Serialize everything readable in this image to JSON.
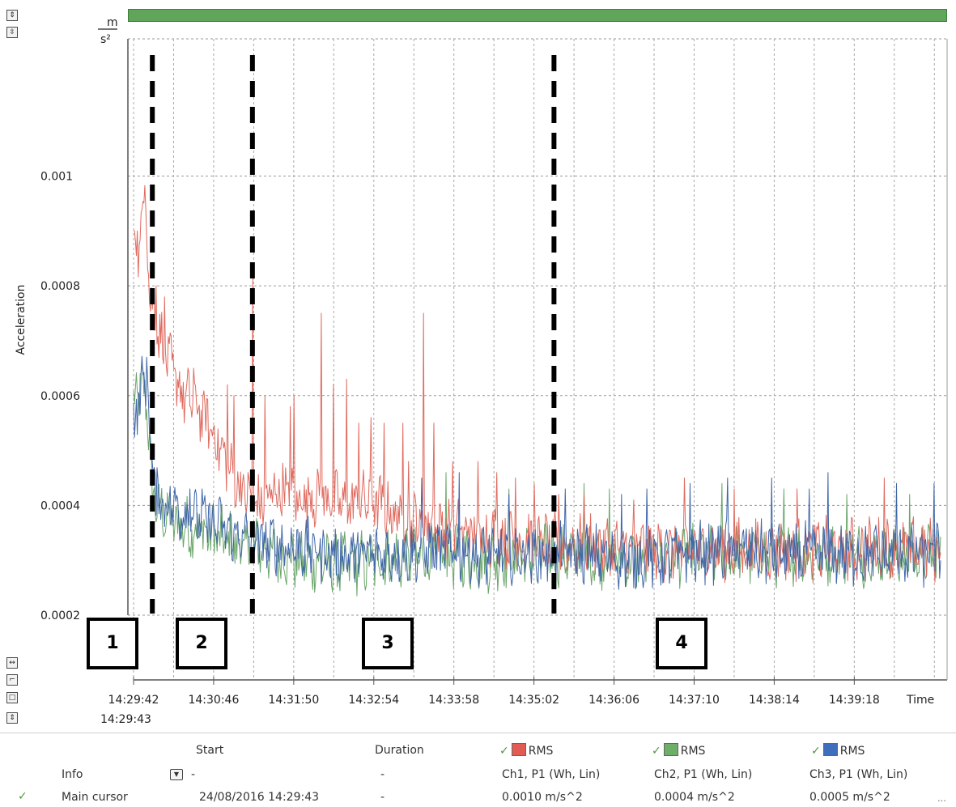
{
  "chart_data": {
    "type": "line",
    "y_unit_top": "m",
    "y_unit_bottom": "s²",
    "ylabel": "Acceleration",
    "xlabel": "Time",
    "y_ticks": [
      "0.001",
      "0.0008",
      "0.0006",
      "0.0004",
      "0.0002"
    ],
    "y_tick_values": [
      0.001,
      0.0008,
      0.0006,
      0.0004,
      0.0002
    ],
    "ylim": [
      0.0002,
      0.00125
    ],
    "x_ticks": [
      "14:29:42",
      "14:30:46",
      "14:31:50",
      "14:32:54",
      "14:33:58",
      "14:35:02",
      "14:36:06",
      "14:37:10",
      "14:38:14",
      "14:39:18"
    ],
    "x_start_label": "14:29:43",
    "x_ticks_seconds": [
      0,
      64,
      128,
      192,
      256,
      320,
      384,
      448,
      512,
      576
    ],
    "xlim_seconds": [
      0,
      645
    ],
    "grid": true,
    "series": [
      {
        "name": "Ch1",
        "color": "#e06a5e",
        "anchors": [
          [
            0,
            0.00092
          ],
          [
            4,
            0.00085
          ],
          [
            9,
            0.001
          ],
          [
            13,
            0.00078
          ],
          [
            20,
            0.00072
          ],
          [
            30,
            0.00065
          ],
          [
            40,
            0.0006
          ],
          [
            50,
            0.00058
          ],
          [
            60,
            0.00055
          ],
          [
            70,
            0.0005
          ],
          [
            80,
            0.00045
          ],
          [
            90,
            0.00042
          ],
          [
            100,
            0.0004
          ],
          [
            110,
            0.00042
          ],
          [
            120,
            0.00043
          ],
          [
            130,
            0.00041
          ],
          [
            150,
            0.00042
          ],
          [
            170,
            0.0004
          ],
          [
            190,
            0.00041
          ],
          [
            210,
            0.00038
          ],
          [
            230,
            0.00037
          ],
          [
            250,
            0.00036
          ],
          [
            270,
            0.00035
          ],
          [
            300,
            0.00034
          ],
          [
            330,
            0.00033
          ],
          [
            360,
            0.00033
          ],
          [
            400,
            0.00032
          ],
          [
            440,
            0.00032
          ],
          [
            480,
            0.00032
          ],
          [
            520,
            0.00032
          ],
          [
            560,
            0.00032
          ],
          [
            600,
            0.00032
          ],
          [
            645,
            0.00032
          ]
        ],
        "spikes": [
          [
            18,
            0.0008
          ],
          [
            25,
            0.00078
          ],
          [
            33,
            0.00065
          ],
          [
            48,
            0.00065
          ],
          [
            75,
            0.00062
          ],
          [
            80,
            0.0006
          ],
          [
            95,
            0.00082
          ],
          [
            105,
            0.0006
          ],
          [
            125,
            0.00058
          ],
          [
            128,
            0.0006
          ],
          [
            150,
            0.00075
          ],
          [
            160,
            0.00062
          ],
          [
            170,
            0.00063
          ],
          [
            180,
            0.00055
          ],
          [
            190,
            0.00056
          ],
          [
            200,
            0.00055
          ],
          [
            215,
            0.00055
          ],
          [
            220,
            0.00048
          ],
          [
            232,
            0.00075
          ],
          [
            240,
            0.00055
          ],
          [
            255,
            0.00048
          ],
          [
            275,
            0.00048
          ],
          [
            290,
            0.00046
          ],
          [
            305,
            0.00045
          ],
          [
            320,
            0.00044
          ],
          [
            340,
            0.00042
          ],
          [
            360,
            0.00042
          ],
          [
            400,
            0.00041
          ],
          [
            440,
            0.00045
          ],
          [
            480,
            0.00043
          ],
          [
            530,
            0.00043
          ],
          [
            600,
            0.00045
          ]
        ]
      },
      {
        "name": "Ch2",
        "color": "#6aa56a",
        "anchors": [
          [
            0,
            0.00058
          ],
          [
            6,
            0.00062
          ],
          [
            11,
            0.00058
          ],
          [
            15,
            0.00042
          ],
          [
            25,
            0.00038
          ],
          [
            40,
            0.00036
          ],
          [
            60,
            0.00035
          ],
          [
            80,
            0.00033
          ],
          [
            100,
            0.00032
          ],
          [
            130,
            0.0003
          ],
          [
            160,
            0.00029
          ],
          [
            200,
            0.0003
          ],
          [
            240,
            0.00031
          ],
          [
            280,
            0.0003
          ],
          [
            320,
            0.00031
          ],
          [
            360,
            0.00031
          ],
          [
            400,
            0.0003
          ],
          [
            440,
            0.00031
          ],
          [
            480,
            0.00031
          ],
          [
            520,
            0.00031
          ],
          [
            560,
            0.00031
          ],
          [
            600,
            0.00031
          ],
          [
            645,
            0.00031
          ]
        ],
        "spikes": [
          [
            250,
            0.00046
          ],
          [
            300,
            0.00043
          ],
          [
            360,
            0.00044
          ],
          [
            380,
            0.00043
          ],
          [
            470,
            0.00044
          ],
          [
            520,
            0.00043
          ],
          [
            570,
            0.00042
          ],
          [
            620,
            0.00042
          ]
        ]
      },
      {
        "name": "Ch3",
        "color": "#3f66a8",
        "anchors": [
          [
            0,
            0.00055
          ],
          [
            5,
            0.0006
          ],
          [
            11,
            0.00065
          ],
          [
            14,
            0.00048
          ],
          [
            20,
            0.00041
          ],
          [
            30,
            0.0004
          ],
          [
            50,
            0.00038
          ],
          [
            70,
            0.00036
          ],
          [
            90,
            0.00034
          ],
          [
            110,
            0.00033
          ],
          [
            140,
            0.00032
          ],
          [
            170,
            0.00031
          ],
          [
            200,
            0.00031
          ],
          [
            240,
            0.00032
          ],
          [
            280,
            0.00031
          ],
          [
            320,
            0.00031
          ],
          [
            360,
            0.00031
          ],
          [
            400,
            0.0003
          ],
          [
            440,
            0.00031
          ],
          [
            480,
            0.00032
          ],
          [
            520,
            0.00031
          ],
          [
            560,
            0.00031
          ],
          [
            600,
            0.00031
          ],
          [
            645,
            0.00031
          ]
        ],
        "spikes": [
          [
            45,
            0.00043
          ],
          [
            230,
            0.00045
          ],
          [
            260,
            0.00046
          ],
          [
            300,
            0.00042
          ],
          [
            345,
            0.00043
          ],
          [
            390,
            0.00042
          ],
          [
            410,
            0.00043
          ],
          [
            445,
            0.00044
          ],
          [
            475,
            0.00045
          ],
          [
            510,
            0.00045
          ],
          [
            540,
            0.00043
          ],
          [
            555,
            0.00046
          ],
          [
            610,
            0.00044
          ],
          [
            640,
            0.00044
          ]
        ]
      }
    ],
    "phase_boundaries_seconds": [
      15,
      95,
      336
    ],
    "phase_labels": [
      "1",
      "2",
      "3",
      "4"
    ]
  },
  "controls": {
    "top_scale_icon": "up-down-arrows-icon",
    "top_fit_icon": "fit-height-icon",
    "bottom_fit_width_icon": "fit-width-icon",
    "bottom_step_icon": "step-icon",
    "bottom_box_icon": "box-zoom-icon",
    "bottom_scale_icon": "up-down-arrows-icon"
  },
  "table": {
    "headers": {
      "start": "Start",
      "duration": "Duration",
      "ch1": "RMS",
      "ch2": "RMS",
      "ch3": "RMS"
    },
    "colors": {
      "ch1": "#e25b52",
      "ch2": "#6fae69",
      "ch3": "#3e6fbd",
      "check": "#4a9a3a"
    },
    "info_row": {
      "label": "Info",
      "start": "-",
      "duration": "-",
      "ch1": "Ch1, P1 (Wh, Lin)",
      "ch2": "Ch2, P1 (Wh, Lin)",
      "ch3": "Ch3, P1 (Wh, Lin)"
    },
    "cursor_row": {
      "label": "Main cursor",
      "start": "24/08/2016 14:29:43",
      "duration": "-",
      "ch1": "0.0010 m/s^2",
      "ch2": "0.0004 m/s^2",
      "ch3": "0.0005 m/s^2"
    },
    "check_mark": "✓",
    "more": "…"
  }
}
